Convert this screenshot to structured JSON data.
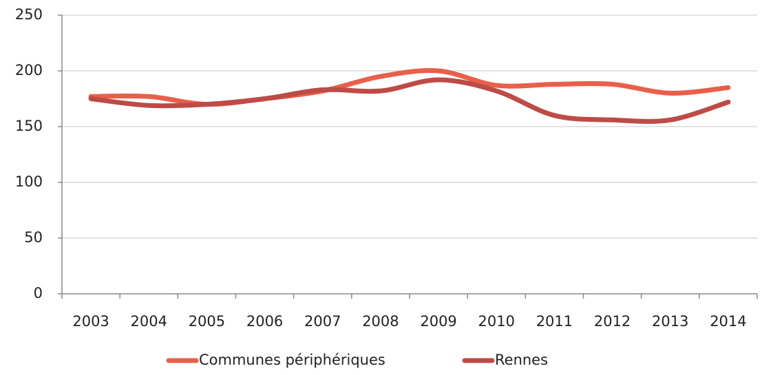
{
  "chart_data": {
    "type": "line",
    "categories": [
      "2003",
      "2004",
      "2005",
      "2006",
      "2007",
      "2008",
      "2009",
      "2010",
      "2011",
      "2012",
      "2013",
      "2014"
    ],
    "series": [
      {
        "name": "Communes périphériques",
        "color": "#e8604a",
        "values": [
          177,
          177,
          170,
          175,
          182,
          195,
          200,
          187,
          188,
          188,
          180,
          185
        ]
      },
      {
        "name": "Rennes",
        "color": "#bd4b47",
        "values": [
          175,
          169,
          170,
          175,
          183,
          182,
          192,
          182,
          160,
          156,
          156,
          172
        ]
      }
    ],
    "ylim": [
      0,
      250
    ],
    "yticks": [
      0,
      50,
      100,
      150,
      200,
      250
    ],
    "grid": true,
    "smooth": true,
    "legend": "bottom"
  }
}
